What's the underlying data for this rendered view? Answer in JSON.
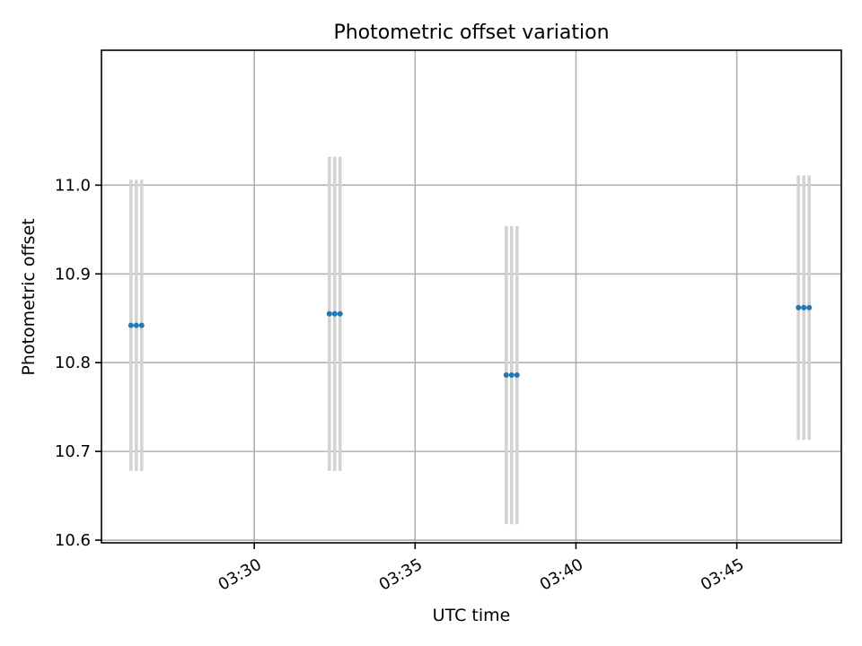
{
  "chart_data": {
    "type": "scatter",
    "title": "Photometric offset variation",
    "xlabel": "UTC time",
    "ylabel": "Photometric offset",
    "x_axis_kind": "time",
    "xlim": [
      "03:25:15",
      "03:48:15"
    ],
    "ylim": [
      10.597,
      11.152
    ],
    "x_ticks": [
      "03:30",
      "03:35",
      "03:40",
      "03:45"
    ],
    "y_ticks": [
      10.6,
      10.7,
      10.8,
      10.9,
      11.0
    ],
    "grid": true,
    "legend": "none",
    "series": [
      {
        "color": "#1f77b4",
        "errorbar_color": "#d3d3d3",
        "points": [
          {
            "x": "03:26:10",
            "y": 10.842,
            "ylow": 10.678,
            "yhigh": 11.006
          },
          {
            "x": "03:26:20",
            "y": 10.842,
            "ylow": 10.678,
            "yhigh": 11.006
          },
          {
            "x": "03:26:30",
            "y": 10.842,
            "ylow": 10.678,
            "yhigh": 11.006
          },
          {
            "x": "03:32:20",
            "y": 10.855,
            "ylow": 10.678,
            "yhigh": 11.032
          },
          {
            "x": "03:32:30",
            "y": 10.855,
            "ylow": 10.678,
            "yhigh": 11.032
          },
          {
            "x": "03:32:40",
            "y": 10.855,
            "ylow": 10.678,
            "yhigh": 11.032
          },
          {
            "x": "03:37:50",
            "y": 10.786,
            "ylow": 10.618,
            "yhigh": 10.954
          },
          {
            "x": "03:38:00",
            "y": 10.786,
            "ylow": 10.618,
            "yhigh": 10.954
          },
          {
            "x": "03:38:10",
            "y": 10.786,
            "ylow": 10.618,
            "yhigh": 10.954
          },
          {
            "x": "03:46:55",
            "y": 10.862,
            "ylow": 10.713,
            "yhigh": 11.011
          },
          {
            "x": "03:47:05",
            "y": 10.862,
            "ylow": 10.713,
            "yhigh": 11.011
          },
          {
            "x": "03:47:15",
            "y": 10.862,
            "ylow": 10.713,
            "yhigh": 11.011
          }
        ]
      }
    ]
  }
}
